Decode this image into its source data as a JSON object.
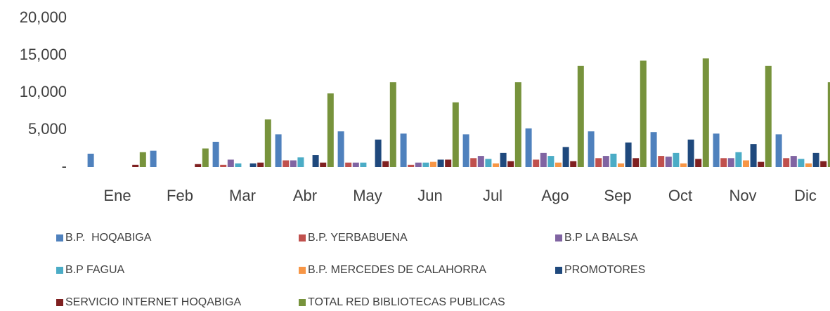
{
  "chart_data": {
    "type": "bar",
    "categories": [
      "Ene",
      "Feb",
      "Mar",
      "Abr",
      "May",
      "Jun",
      "Jul",
      "Ago",
      "Sep",
      "Oct",
      "Nov",
      "Dic"
    ],
    "series": [
      {
        "name": "B.P.  HOQABIGA",
        "color": "#4f81bd",
        "values": [
          1800,
          2200,
          3400,
          4400,
          4800,
          4500,
          4400,
          5200,
          4800,
          4700,
          4500,
          4400
        ]
      },
      {
        "name": "B.P. YERBABUENA",
        "color": "#c0504d",
        "values": [
          0,
          0,
          300,
          900,
          600,
          300,
          1200,
          1000,
          1200,
          1500,
          1200,
          1200
        ]
      },
      {
        "name": "B.P LA BALSA",
        "color": "#8064a2",
        "values": [
          0,
          0,
          1000,
          900,
          600,
          600,
          1500,
          1900,
          1500,
          1400,
          1200,
          1500
        ]
      },
      {
        "name": "B.P FAGUA",
        "color": "#4bacc6",
        "values": [
          0,
          0,
          500,
          1300,
          600,
          600,
          1100,
          1500,
          1800,
          1900,
          2000,
          1100
        ]
      },
      {
        "name": "B.P. MERCEDES DE CALAHORRA",
        "color": "#f79646",
        "values": [
          0,
          0,
          0,
          0,
          0,
          700,
          500,
          600,
          500,
          500,
          900,
          500
        ]
      },
      {
        "name": "PROMOTORES",
        "color": "#1f497d",
        "values": [
          0,
          0,
          500,
          1600,
          3700,
          1000,
          1900,
          2700,
          3300,
          3700,
          3100,
          1900
        ]
      },
      {
        "name": "SERVICIO INTERNET HOQABIGA",
        "color": "#7f2020",
        "values": [
          300,
          400,
          600,
          600,
          800,
          1000,
          800,
          800,
          1200,
          1100,
          700,
          800
        ]
      },
      {
        "name": "TOTAL RED BIBLIOTECAS PUBLICAS",
        "color": "#77933c",
        "values": [
          2000,
          2500,
          6400,
          9900,
          11400,
          8700,
          11400,
          13600,
          14300,
          14600,
          13600,
          11400
        ]
      }
    ],
    "ylim": [
      0,
      20000
    ],
    "yticks": [
      {
        "value": 0,
        "label": "-"
      },
      {
        "value": 5000,
        "label": "5,000"
      },
      {
        "value": 10000,
        "label": "10,000"
      },
      {
        "value": 15000,
        "label": "15,000"
      },
      {
        "value": 20000,
        "label": "20,000"
      }
    ],
    "grid": false,
    "legend": "bottom"
  }
}
